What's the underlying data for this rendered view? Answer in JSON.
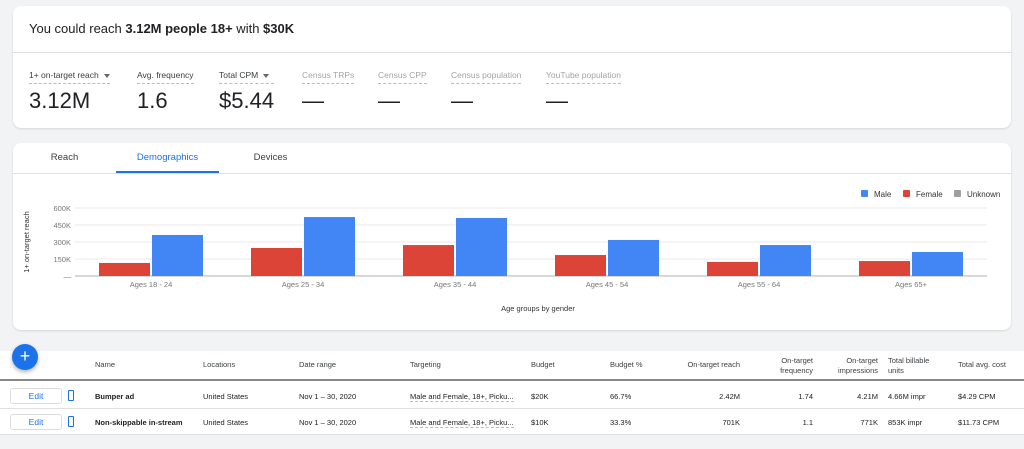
{
  "summary": {
    "prefix": "You could reach ",
    "reach": "3.12M people 18+",
    "mid": " with ",
    "budget": "$30K"
  },
  "metrics": [
    {
      "label": "1+ on-target reach",
      "value": "3.12M",
      "dropdown": true
    },
    {
      "label": "Avg. frequency",
      "value": "1.6"
    },
    {
      "label": "Total CPM",
      "value": "$5.44",
      "dropdown": true
    },
    {
      "label": "Census TRPs",
      "value": "—",
      "disabled": true
    },
    {
      "label": "Census CPP",
      "value": "—",
      "disabled": true
    },
    {
      "label": "Census population",
      "value": "—",
      "disabled": true
    },
    {
      "label": "YouTube population",
      "value": "—",
      "disabled": true
    }
  ],
  "tabs": [
    {
      "label": "Reach"
    },
    {
      "label": "Demographics",
      "active": true
    },
    {
      "label": "Devices"
    }
  ],
  "chart_data": {
    "type": "bar",
    "categories": [
      "Ages 18 - 24",
      "Ages 25 - 34",
      "Ages 35 - 44",
      "Ages 45 - 54",
      "Ages 55 - 64",
      "Ages 65+"
    ],
    "series": [
      {
        "name": "Female",
        "color": "#db4437",
        "values": [
          115000,
          247000,
          273000,
          185000,
          124000,
          132000
        ]
      },
      {
        "name": "Male",
        "color": "#4285f4",
        "values": [
          362000,
          520000,
          512000,
          318000,
          273000,
          212000
        ]
      }
    ],
    "legend": [
      {
        "name": "Male",
        "color": "#4285f4"
      },
      {
        "name": "Female",
        "color": "#db4437"
      },
      {
        "name": "Unknown",
        "color": "#9e9e9e"
      }
    ],
    "legend_position": "top-right",
    "yticks": [
      "—",
      "150K",
      "300K",
      "450K",
      "600K"
    ],
    "ylim": [
      0,
      600000
    ],
    "xlabel": "Age groups by gender",
    "ylabel": "1+ on-target reach",
    "grid": true
  },
  "table": {
    "add_label": "+",
    "headers": [
      "Name",
      "Locations",
      "Date range",
      "Targeting",
      "Budget",
      "Budget %",
      "On-target reach",
      "On-target frequency",
      "On-target impressions",
      "Total billable units",
      "Total avg. cost"
    ],
    "edit_label": "Edit",
    "rows": [
      [
        "Bumper ad",
        "United States",
        "Nov 1 – 30, 2020",
        "Male and Female, 18+, Picku...",
        "$20K",
        "66.7%",
        "2.42M",
        "1.74",
        "4.21M",
        "4.66M impr",
        "$4.29 CPM"
      ],
      [
        "Non-skippable in-stream",
        "United States",
        "Nov 1 – 30, 2020",
        "Male and Female, 18+, Picku...",
        "$10K",
        "33.3%",
        "701K",
        "1.1",
        "771K",
        "853K impr",
        "$11.73 CPM"
      ]
    ]
  }
}
